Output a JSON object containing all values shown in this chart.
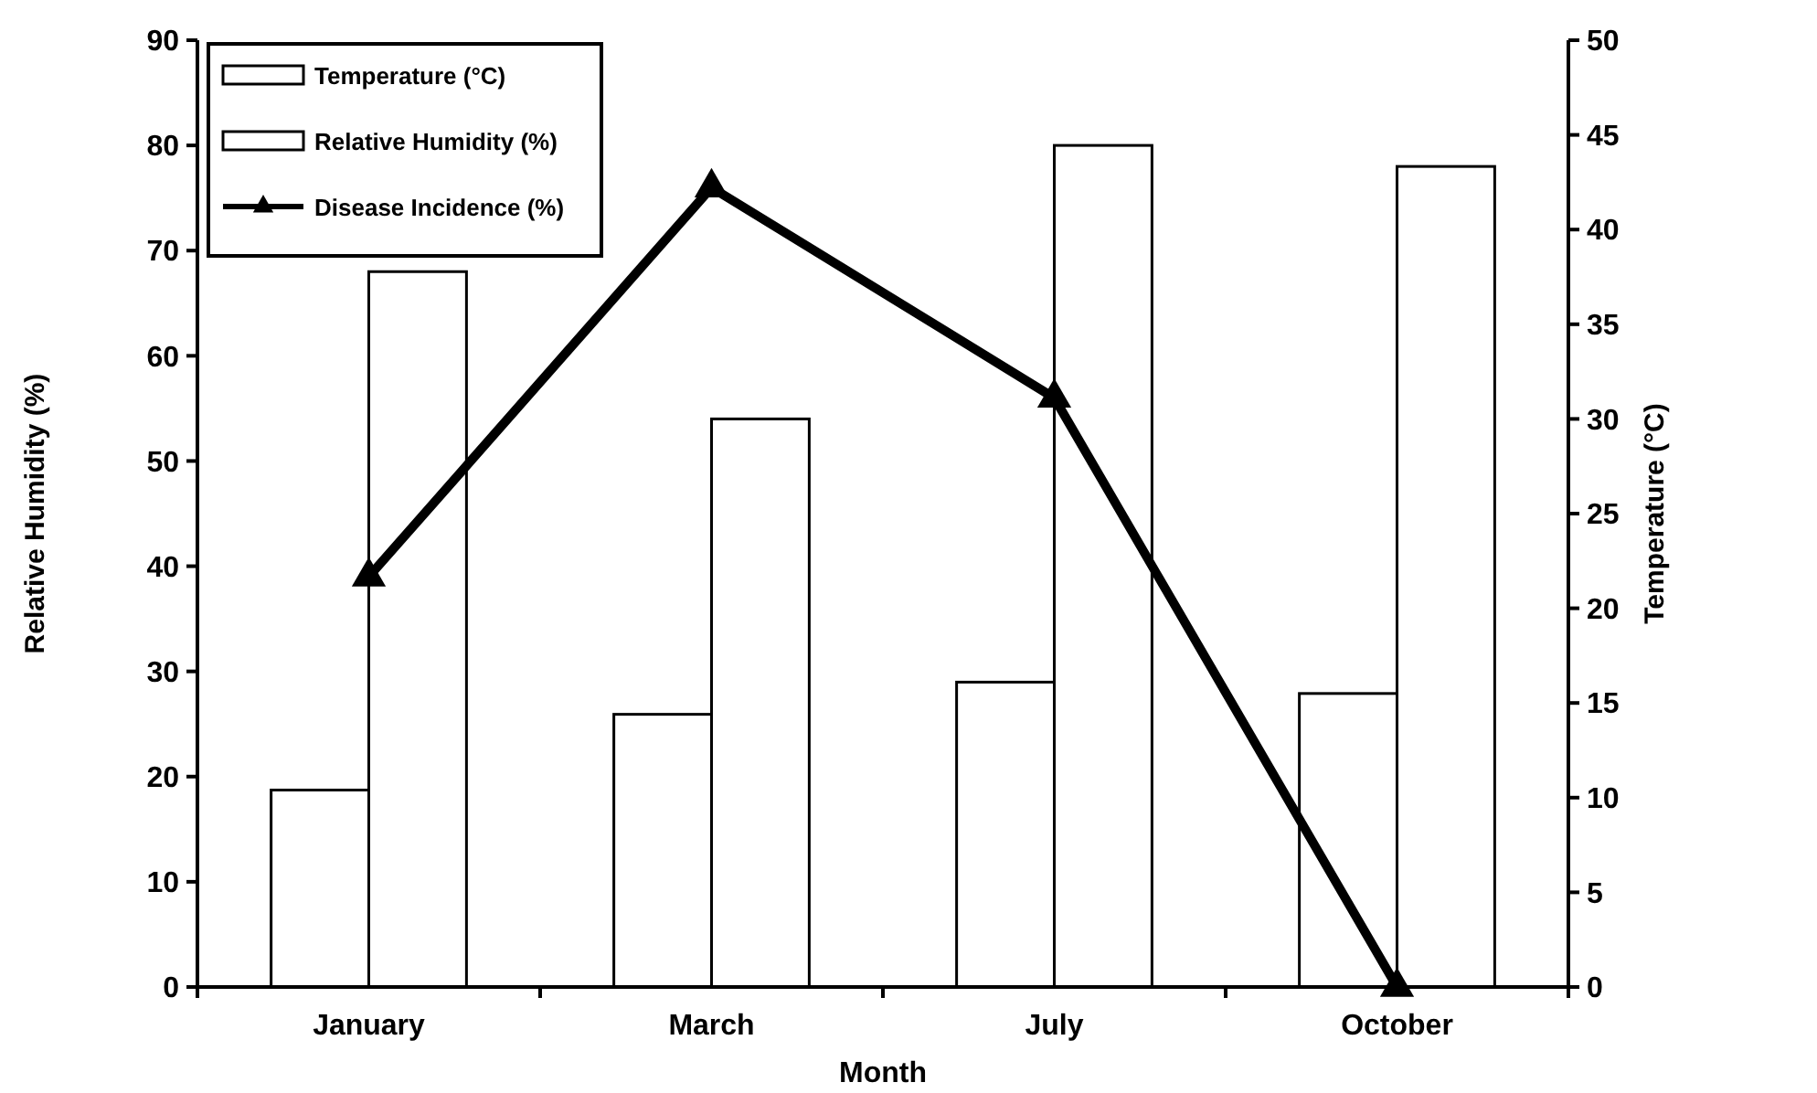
{
  "chart_data": {
    "type": "bar",
    "xlabel": "Month",
    "ylabel": "Relative Humidity (%)",
    "y2label": "Temperature (°C)",
    "categories": [
      "January",
      "March",
      "July",
      "October"
    ],
    "series": [
      {
        "name": "Temperature (°C)",
        "color": "#ffffff",
        "values": [
          10.4,
          14.4,
          16.1,
          15.5
        ],
        "axis": "y2"
      },
      {
        "name": "Relative Humidity (%)",
        "color": "#ffffff",
        "values": [
          68,
          54,
          80,
          78
        ]
      },
      {
        "name": "Disease Incidence (%)",
        "type": "line",
        "color": "#000000",
        "values": [
          39,
          76,
          56,
          0
        ],
        "marker": "triangle"
      }
    ],
    "ylim": [
      0,
      90
    ],
    "yticks": [
      0,
      10,
      20,
      30,
      40,
      50,
      60,
      70,
      80,
      90
    ],
    "y2lim": [
      0,
      50
    ],
    "y2ticks": [
      0,
      5,
      10,
      15,
      20,
      25,
      30,
      35,
      40,
      45,
      50
    ],
    "legend": "top left",
    "grid": false
  }
}
